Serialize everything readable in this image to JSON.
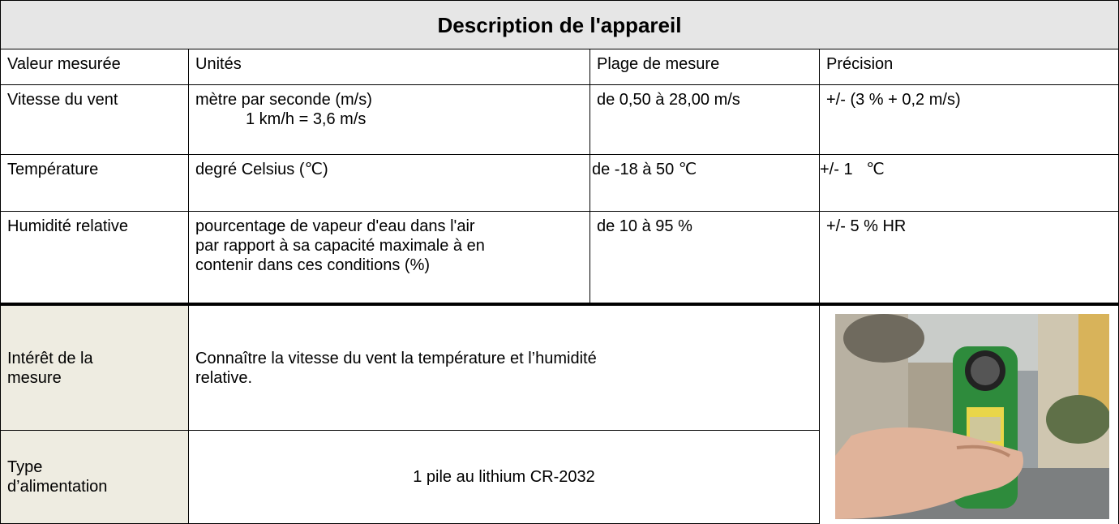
{
  "header": {
    "title": "Description de l'appareil"
  },
  "table": {
    "columns": [
      "Valeur mesurée",
      "Unités",
      "Plage de mesure",
      "Précision"
    ],
    "rows": [
      [
        "Vitesse du vent",
        [
          "mètre par seconde (m/s)",
          "1 km/h = 3,6 m/s"
        ],
        "de 0,50 à 28,00 m/s",
        "+/- (3 % + 0,2 m/s)"
      ],
      [
        "Température",
        [
          "degré Celsius (℃)"
        ],
        "de -18 à 50 ℃",
        "+/- 1   ℃"
      ],
      [
        "Humidité relative",
        [
          "pourcentage de vapeur d'eau dans l'air",
          "par rapport à sa capacité maximale à en",
          "contenir dans ces conditions (%)"
        ],
        "de 10 à 95 %",
        "+/- 5 % HR"
      ]
    ]
  },
  "details": [
    {
      "label": [
        "Intérêt de la",
        "mesure"
      ],
      "text": [
        "Connaître la vitesse du vent la température et l’humidité",
        "relative."
      ]
    },
    {
      "label": [
        "Type",
        "d’alimentation"
      ],
      "text": [
        "1 pile au lithium CR-2032"
      ]
    }
  ]
}
